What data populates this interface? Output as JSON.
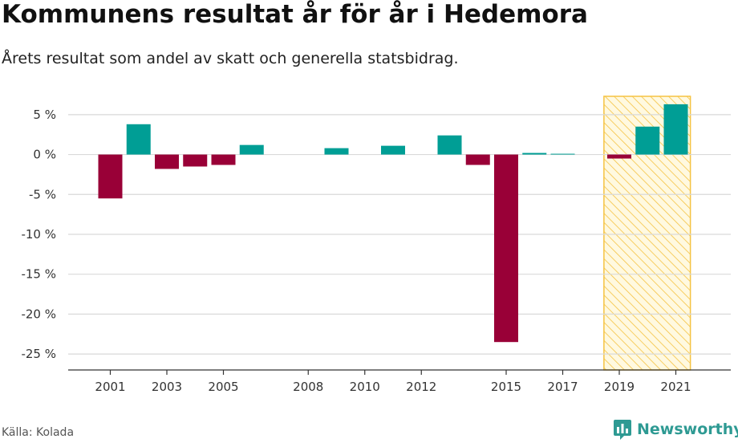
{
  "title": "Kommunens resultat år för år i Hedemora",
  "subtitle": "Årets resultat som andel av skatt och generella statsbidrag.",
  "source": "Källa: Kolada",
  "brand": "Newsworthy",
  "colors": {
    "positive": "#009e95",
    "negative": "#990037",
    "highlight_stroke": "#f5c342",
    "highlight_fill": "#fff9e0",
    "grid": "#d9d9d9",
    "brand": "#2e9a93"
  },
  "chart_data": {
    "type": "bar",
    "categories": [
      "2001",
      "2002",
      "2003",
      "2004",
      "2005",
      "2006",
      "2007",
      "2008",
      "2009",
      "2010",
      "2011",
      "2012",
      "2013",
      "2014",
      "2015",
      "2016",
      "2017",
      "2018",
      "2019",
      "2020",
      "2021"
    ],
    "values": [
      -5.5,
      3.8,
      -1.8,
      -1.5,
      -1.3,
      1.2,
      null,
      null,
      0.8,
      null,
      1.1,
      null,
      2.4,
      -1.3,
      -23.5,
      0.2,
      0.1,
      null,
      -0.5,
      3.5,
      6.3
    ],
    "x_tick_labels": [
      "2001",
      "2003",
      "2005",
      "2008",
      "2010",
      "2012",
      "2015",
      "2017",
      "2019",
      "2021"
    ],
    "y_ticks": [
      5,
      0,
      -5,
      -10,
      -15,
      -20,
      -25
    ],
    "y_tick_labels": [
      "5 %",
      "0 %",
      "-5 %",
      "-10 %",
      "-15 %",
      "-20 %",
      "-25 %"
    ],
    "ylim": [
      -27,
      7.5
    ],
    "highlight_range": [
      "2019",
      "2021"
    ],
    "xlabel": "",
    "ylabel": ""
  }
}
